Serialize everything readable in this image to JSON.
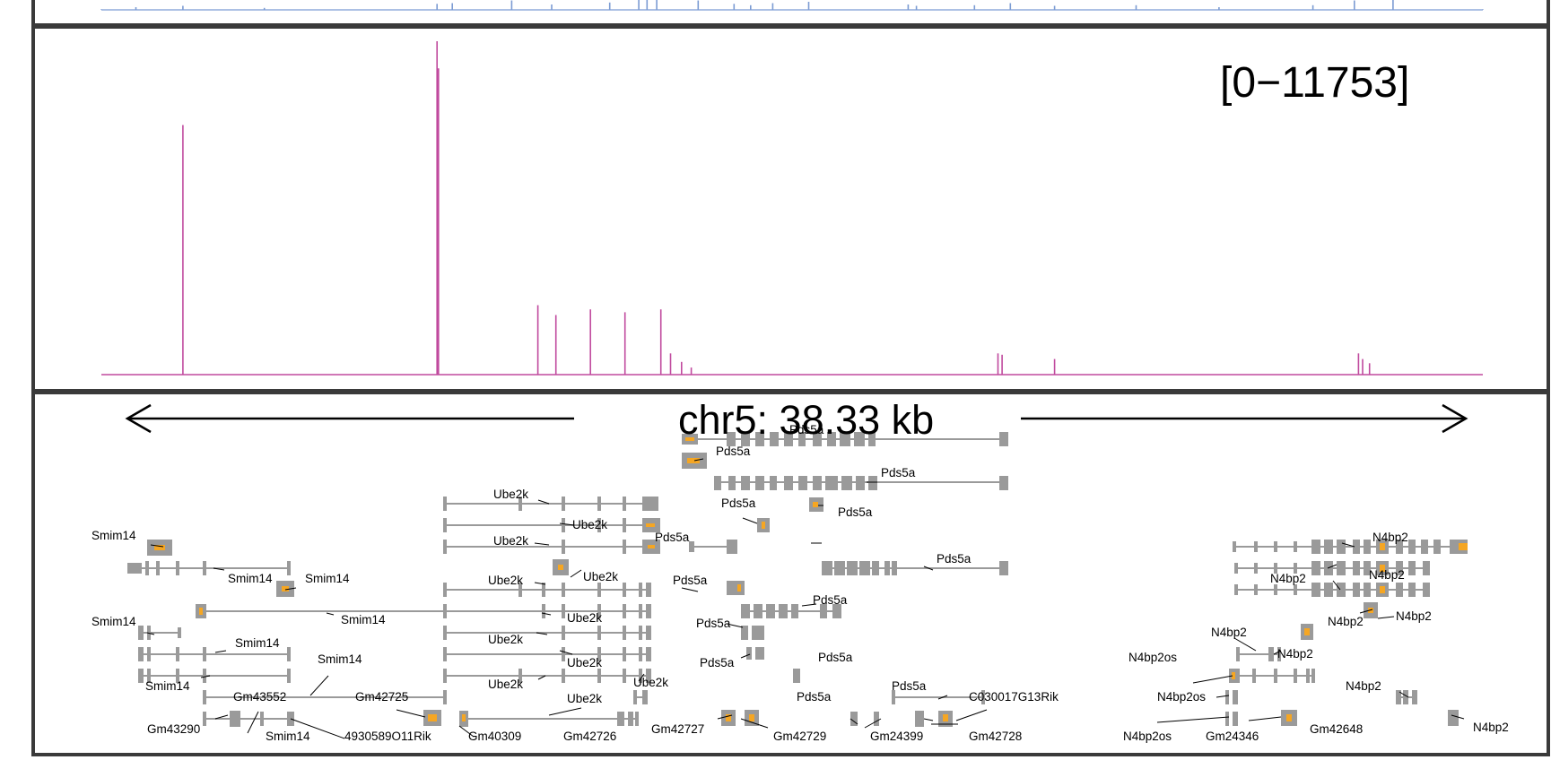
{
  "chart_data": [
    {
      "type": "area",
      "track": "coverage-blue",
      "color": "#7b9bd3",
      "note_values": "relative signal 0-1 (partially visible top track, no scale shown)",
      "x": [
        0.0,
        0.025,
        0.059,
        0.118,
        0.243,
        0.254,
        0.297,
        0.326,
        0.368,
        0.389,
        0.395,
        0.402,
        0.432,
        0.458,
        0.47,
        0.486,
        0.512,
        0.584,
        0.59,
        0.632,
        0.658,
        0.69,
        0.749,
        0.809,
        0.877,
        0.907,
        0.935,
        1.0
      ],
      "values": [
        0.05,
        0.2,
        0.3,
        0.15,
        0.45,
        0.5,
        0.7,
        0.4,
        0.55,
        0.9,
        1.0,
        0.85,
        0.7,
        0.45,
        0.35,
        0.5,
        0.6,
        0.4,
        0.3,
        0.35,
        0.5,
        0.3,
        0.35,
        0.2,
        0.35,
        0.7,
        0.85,
        0.05
      ]
    },
    {
      "type": "area",
      "track": "coverage-magenta",
      "color": "#c04a9e",
      "range_label": "[0−11753]",
      "ylim": [
        0,
        11753
      ],
      "x": [
        0.059,
        0.243,
        0.244,
        0.316,
        0.329,
        0.354,
        0.379,
        0.405,
        0.412,
        0.42,
        0.427,
        0.649,
        0.652,
        0.69,
        0.91,
        0.913,
        0.918
      ],
      "values": [
        8800,
        11753,
        10800,
        2450,
        2100,
        2300,
        2200,
        2300,
        750,
        450,
        250,
        750,
        700,
        550,
        750,
        550,
        400
      ]
    },
    {
      "type": "table",
      "track": "gene-annotations",
      "coord_label": "chr5: 38.33 kb",
      "genes": [
        "Smim14",
        "Smim14",
        "Smim14",
        "Smim14",
        "Smim14",
        "Smim14",
        "Smim14",
        "Smim14",
        "Gm43552",
        "Gm43290",
        "4930589O11Rik",
        "Gm42725",
        "Gm40309",
        "Gm42726",
        "Ube2k",
        "Ube2k",
        "Ube2k",
        "Ube2k",
        "Ube2k",
        "Ube2k",
        "Ube2k",
        "Ube2k",
        "Ube2k",
        "Ube2k",
        "Pds5a",
        "Pds5a",
        "Pds5a",
        "Pds5a",
        "Pds5a",
        "Pds5a",
        "Pds5a",
        "Pds5a",
        "Pds5a",
        "Pds5a",
        "Pds5a",
        "Pds5a",
        "Pds5a",
        "Pds5a",
        "Gm42727",
        "Gm42729",
        "Gm24399",
        "Gm42728",
        "C030017G13Rik",
        "N4bp2",
        "N4bp2",
        "N4bp2",
        "N4bp2",
        "N4bp2",
        "N4bp2",
        "N4bp2",
        "N4bp2",
        "N4bp2os",
        "N4bp2os",
        "N4bp2os",
        "Gm24346",
        "Gm42648"
      ]
    }
  ]
}
